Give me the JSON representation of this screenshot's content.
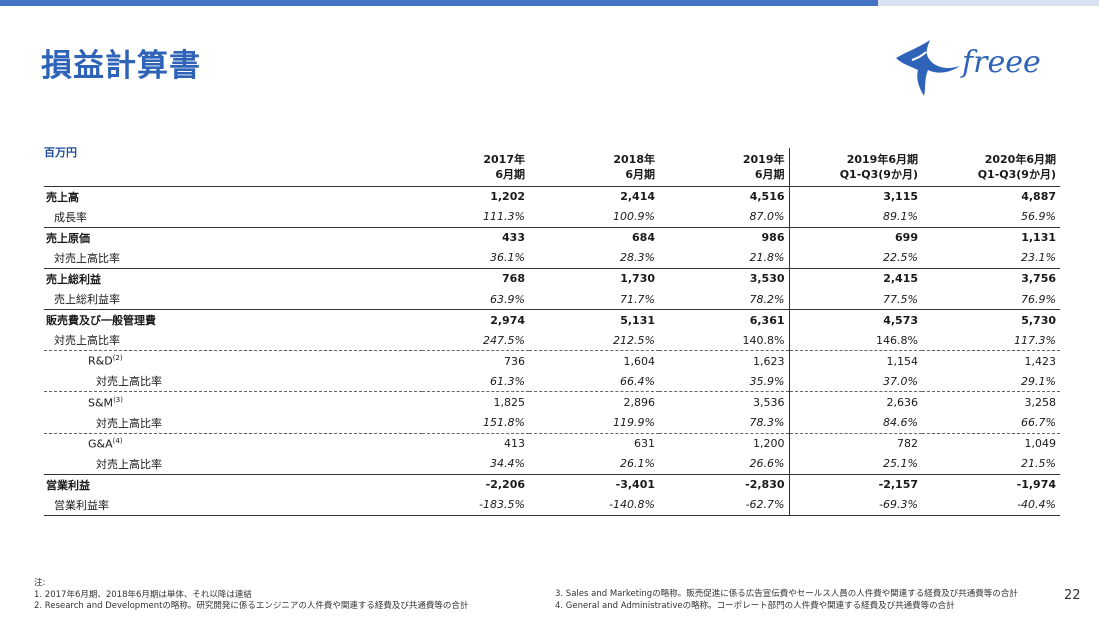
{
  "title": "損益計算書",
  "brand": {
    "name": "freee",
    "color": "#2e63b8"
  },
  "colors": {
    "accent_bar": "#4472c4",
    "title": "#2e63b8"
  },
  "unit": "百万円",
  "columns": [
    {
      "line1": "2017年",
      "line2": "6月期"
    },
    {
      "line1": "2018年",
      "line2": "6月期"
    },
    {
      "line1": "2019年",
      "line2": "6月期"
    },
    {
      "line1": "2019年6月期",
      "line2": "Q1-Q3(9か月)"
    },
    {
      "line1": "2020年6月期",
      "line2": "Q1-Q3(9か月)"
    }
  ],
  "rows": [
    {
      "label": "売上高",
      "values": [
        "1,202",
        "2,414",
        "4,516",
        "3,115",
        "4,887"
      ]
    },
    {
      "label": "成長率",
      "values": [
        "111.3%",
        "100.9%",
        "87.0%",
        "89.1%",
        "56.9%"
      ]
    },
    {
      "label": "売上原価",
      "values": [
        "433",
        "684",
        "986",
        "699",
        "1,131"
      ]
    },
    {
      "label": "対売上高比率",
      "values": [
        "36.1%",
        "28.3%",
        "21.8%",
        "22.5%",
        "23.1%"
      ]
    },
    {
      "label": "売上総利益",
      "values": [
        "768",
        "1,730",
        "3,530",
        "2,415",
        "3,756"
      ]
    },
    {
      "label": "売上総利益率",
      "values": [
        "63.9%",
        "71.7%",
        "78.2%",
        "77.5%",
        "76.9%"
      ]
    },
    {
      "label": "販売費及び一般管理費",
      "values": [
        "2,974",
        "5,131",
        "6,361",
        "4,573",
        "5,730"
      ]
    },
    {
      "label": "対売上高比率",
      "values": [
        "247.5%",
        "212.5%",
        "140.8%",
        "146.8%",
        "117.3%"
      ]
    },
    {
      "label": "R&D",
      "sup": "(2)",
      "values": [
        "736",
        "1,604",
        "1,623",
        "1,154",
        "1,423"
      ]
    },
    {
      "label": "対売上高比率",
      "values": [
        "61.3%",
        "66.4%",
        "35.9%",
        "37.0%",
        "29.1%"
      ]
    },
    {
      "label": "S&M",
      "sup": "(3)",
      "values": [
        "1,825",
        "2,896",
        "3,536",
        "2,636",
        "3,258"
      ]
    },
    {
      "label": "対売上高比率",
      "values": [
        "151.8%",
        "119.9%",
        "78.3%",
        "84.6%",
        "66.7%"
      ]
    },
    {
      "label": "G&A",
      "sup": "(4)",
      "values": [
        "413",
        "631",
        "1,200",
        "782",
        "1,049"
      ]
    },
    {
      "label": "対売上高比率",
      "values": [
        "34.4%",
        "26.1%",
        "26.6%",
        "25.1%",
        "21.5%"
      ]
    },
    {
      "label": "営業利益",
      "values": [
        "-2,206",
        "-3,401",
        "-2,830",
        "-2,157",
        "-1,974"
      ]
    },
    {
      "label": "営業利益率",
      "values": [
        "-183.5%",
        "-140.8%",
        "-62.7%",
        "-69.3%",
        "-40.4%"
      ]
    }
  ],
  "notes": {
    "heading": "注:",
    "items": [
      "1. 2017年6月期、2018年6月期は単体、それ以降は連結",
      "2. Research and Developmentの略称。研究開発に係るエンジニアの人件費や関連する経費及び共通費等の合計",
      "3. Sales and Marketingの略称。販売促進に係る広告宣伝費やセールス人員の人件費や関連する経費及び共通費等の合計",
      "4. General and Administrativeの略称。コーポレート部門の人件費や関連する経費及び共通費等の合計"
    ]
  },
  "page_number": "22"
}
